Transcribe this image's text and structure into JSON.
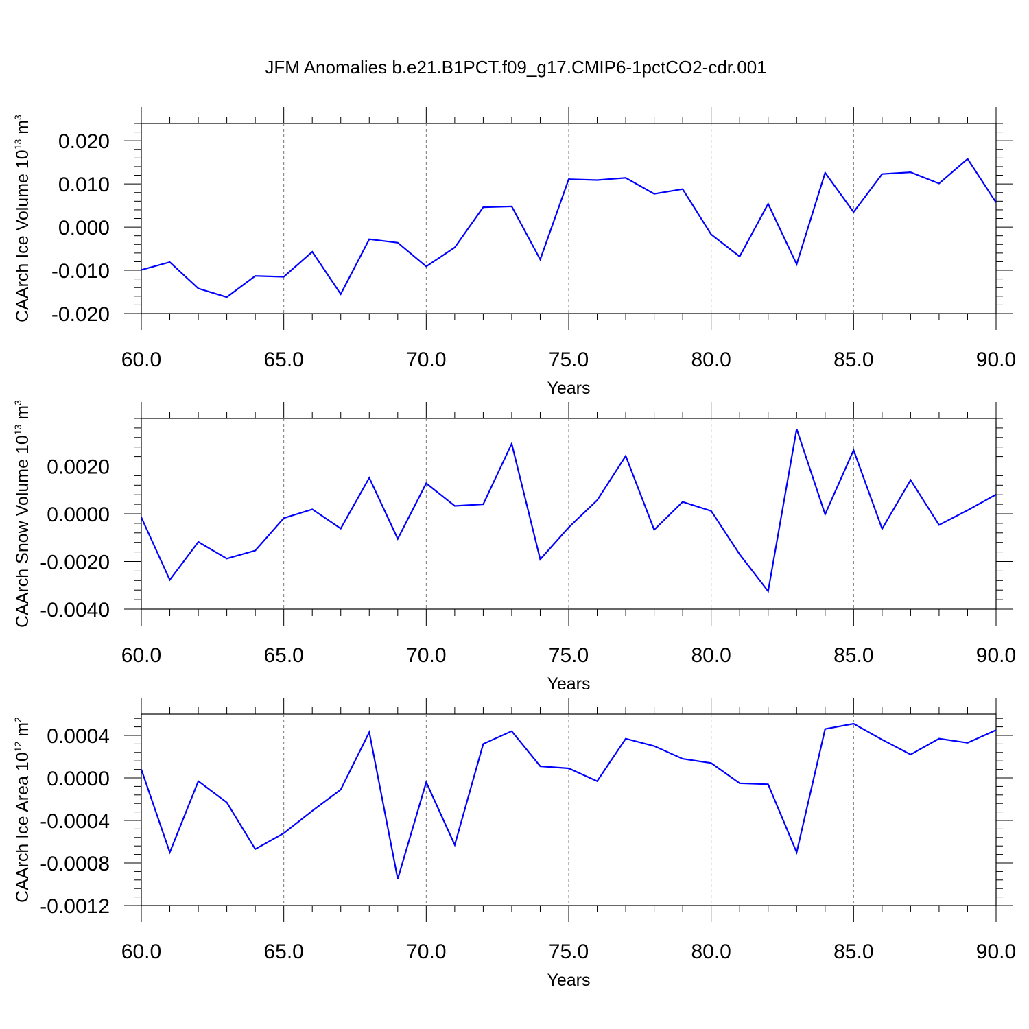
{
  "title": "JFM Anomalies b.e21.B1PCT.f09_g17.CMIP6-1pctCO2-cdr.001",
  "colors": {
    "line": "#0000ff",
    "grid": "#777777",
    "axes": "#000000"
  },
  "chart_data": [
    {
      "type": "line",
      "xlabel": "Years",
      "ylabel": {
        "prefix": "CAArch Ice Volume 10",
        "exp": "13",
        "unit": " m",
        "unit_exp": "3"
      },
      "xlim": [
        60,
        90
      ],
      "ylim": [
        -0.02,
        0.024
      ],
      "xticks": [
        60,
        65,
        70,
        75,
        80,
        85,
        90
      ],
      "xtick_labels": [
        "60.0",
        "65.0",
        "70.0",
        "75.0",
        "80.0",
        "85.0",
        "90.0"
      ],
      "yticks": [
        -0.02,
        -0.01,
        0,
        0.01,
        0.02
      ],
      "ytick_labels": [
        "-0.020",
        "-0.010",
        "0.000",
        "0.010",
        "0.020"
      ],
      "grid": "vertical dashed at major x ticks",
      "x": [
        60,
        61,
        62,
        63,
        64,
        65,
        66,
        67,
        68,
        69,
        70,
        71,
        72,
        73,
        74,
        75,
        76,
        77,
        78,
        79,
        80,
        81,
        82,
        83,
        84,
        85,
        86,
        87,
        88,
        89,
        90
      ],
      "values": [
        -0.0099,
        -0.0081,
        -0.0142,
        -0.0162,
        -0.0113,
        -0.0115,
        -0.0057,
        -0.0155,
        -0.0028,
        -0.0036,
        -0.0091,
        -0.0047,
        0.0046,
        0.0048,
        -0.0075,
        0.0111,
        0.0109,
        0.0114,
        0.0077,
        0.0088,
        -0.0017,
        -0.0068,
        0.0054,
        -0.0086,
        0.0126,
        0.0035,
        0.0123,
        0.0127,
        0.0101,
        0.0158,
        0.0057
      ]
    },
    {
      "type": "line",
      "xlabel": "Years",
      "ylabel": {
        "prefix": "CAArch Snow Volume 10",
        "exp": "13",
        "unit": " m",
        "unit_exp": "3"
      },
      "xlim": [
        60,
        90
      ],
      "ylim": [
        -0.004,
        0.004
      ],
      "xticks": [
        60,
        65,
        70,
        75,
        80,
        85,
        90
      ],
      "xtick_labels": [
        "60.0",
        "65.0",
        "70.0",
        "75.0",
        "80.0",
        "85.0",
        "90.0"
      ],
      "yticks": [
        -0.004,
        -0.002,
        0,
        0.002
      ],
      "ytick_labels": [
        "-0.0040",
        "-0.0020",
        "0.0000",
        "0.0020"
      ],
      "grid": "vertical dashed at major x ticks",
      "x": [
        60,
        61,
        62,
        63,
        64,
        65,
        66,
        67,
        68,
        69,
        70,
        71,
        72,
        73,
        74,
        75,
        76,
        77,
        78,
        79,
        80,
        81,
        82,
        83,
        84,
        85,
        86,
        87,
        88,
        89,
        90
      ],
      "values": [
        -0.00015,
        -0.00277,
        -0.00118,
        -0.00188,
        -0.00154,
        -0.00018,
        0.00019,
        -0.00062,
        0.00151,
        -0.00105,
        0.00128,
        0.00033,
        0.0004,
        0.00294,
        -0.00191,
        -0.00057,
        0.00057,
        0.00243,
        -0.00067,
        0.0005,
        0.00012,
        -0.0017,
        -0.00325,
        0.00356,
        -2e-05,
        0.00267,
        -0.00063,
        0.00142,
        -0.00047,
        0.00015,
        0.00081
      ]
    },
    {
      "type": "line",
      "xlabel": "Years",
      "ylabel": {
        "prefix": "CAArch Ice Area 10",
        "exp": "12",
        "unit": " m",
        "unit_exp": "2"
      },
      "xlim": [
        60,
        90
      ],
      "ylim": [
        -0.0012,
        0.0006
      ],
      "xticks": [
        60,
        65,
        70,
        75,
        80,
        85,
        90
      ],
      "xtick_labels": [
        "60.0",
        "65.0",
        "70.0",
        "75.0",
        "80.0",
        "85.0",
        "90.0"
      ],
      "yticks": [
        -0.0012,
        -0.0008,
        -0.0004,
        0,
        0.0004
      ],
      "ytick_labels": [
        "-0.0012",
        "-0.0008",
        "-0.0004",
        "0.0000",
        "0.0004"
      ],
      "grid": "vertical dashed at major x ticks",
      "x": [
        60,
        61,
        62,
        63,
        64,
        65,
        66,
        67,
        68,
        69,
        70,
        71,
        72,
        73,
        74,
        75,
        76,
        77,
        78,
        79,
        80,
        81,
        82,
        83,
        84,
        85,
        86,
        87,
        88,
        89,
        90
      ],
      "values": [
        8e-05,
        -0.0007,
        -3e-05,
        -0.00023,
        -0.00067,
        -0.00052,
        -0.00031,
        -0.00011,
        0.00043,
        -0.00095,
        -4e-05,
        -0.00063,
        0.00032,
        0.00044,
        0.00011,
        9e-05,
        -3e-05,
        0.00037,
        0.0003,
        0.00018,
        0.00014,
        -5e-05,
        -6e-05,
        -0.0007,
        0.00046,
        0.00051,
        0.00036,
        0.00022,
        0.00037,
        0.00033,
        0.00045
      ]
    }
  ]
}
